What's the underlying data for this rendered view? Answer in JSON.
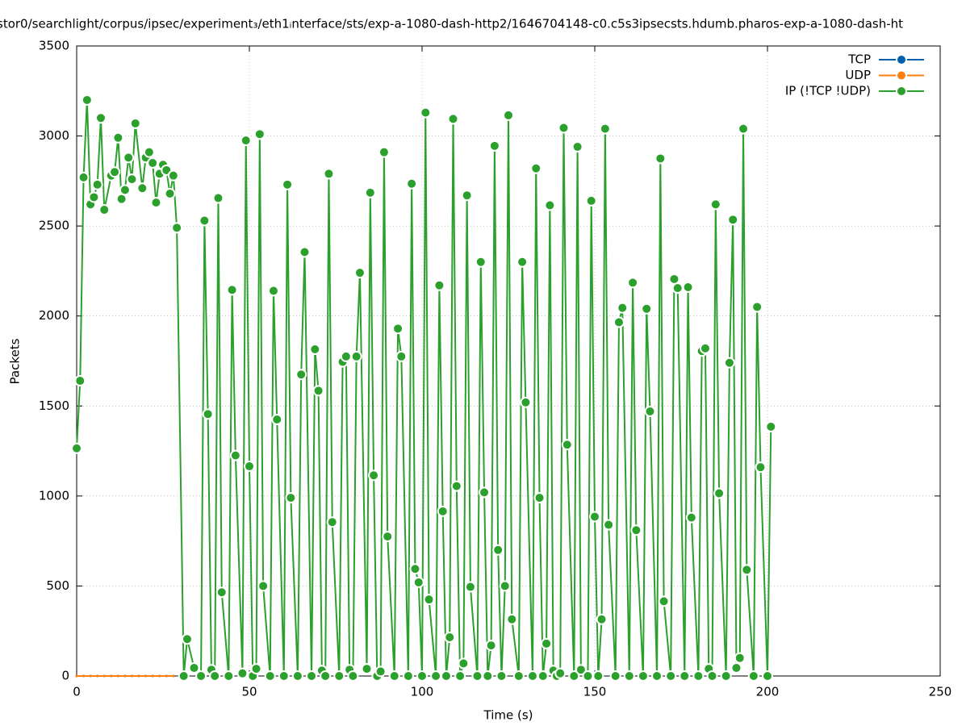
{
  "chart_data": {
    "type": "line",
    "title": "stor0/searchlight/corpus/ipsec/experiment₃/eth1ᵢnterface/sts/exp-a-1080-dash-http2/1646704148-c0.c5s3ipsecsts.hdumb.pharos-exp-a-1080-dash-ht",
    "x_label": "Time (s)",
    "y_label": "Packets",
    "xlim": [
      0,
      250
    ],
    "xticks": [
      0,
      50,
      100,
      150,
      200,
      250
    ],
    "ylim": [
      0,
      3500
    ],
    "yticks": [
      0,
      500,
      1000,
      1500,
      2000,
      2500,
      3000,
      3500
    ],
    "grid": true,
    "legend": "top right",
    "series": [
      {
        "name": "TCP",
        "color": "#0060ad",
        "x": [
          0,
          2,
          4,
          6,
          8,
          10,
          12,
          14,
          16,
          18,
          20,
          22,
          24,
          26,
          28
        ],
        "values": [
          0,
          0,
          0,
          0,
          0,
          0,
          0,
          0,
          0,
          0,
          0,
          0,
          0,
          0,
          0
        ]
      },
      {
        "name": "UDP",
        "color": "#ff7f0e",
        "x": [
          0,
          2,
          4,
          6,
          8,
          10,
          12,
          14,
          16,
          18,
          20,
          22,
          24,
          26,
          28
        ],
        "values": [
          0,
          0,
          0,
          0,
          0,
          0,
          0,
          0,
          0,
          0,
          0,
          0,
          0,
          0,
          0
        ]
      },
      {
        "name": "IP (!TCP  !UDP)",
        "color": "#2ca02c",
        "x": [
          0,
          1,
          2,
          3,
          4,
          5,
          6,
          7,
          8,
          10,
          11,
          12,
          13,
          14,
          15,
          16,
          17,
          19,
          20,
          21,
          22,
          23,
          24,
          25,
          26,
          27,
          28,
          29,
          31,
          32,
          34,
          36,
          37,
          38,
          39,
          40,
          41,
          42,
          44,
          45,
          46,
          48,
          49,
          50,
          51,
          52,
          53,
          54,
          56,
          57,
          58,
          60,
          61,
          62,
          64,
          65,
          66,
          68,
          69,
          70,
          71,
          72,
          73,
          74,
          76,
          77,
          78,
          79,
          80,
          81,
          82,
          84,
          85,
          86,
          87,
          88,
          89,
          90,
          92,
          93,
          94,
          96,
          97,
          98,
          99,
          100,
          101,
          102,
          104,
          105,
          106,
          107,
          108,
          109,
          110,
          111,
          112,
          113,
          114,
          116,
          117,
          118,
          119,
          120,
          121,
          122,
          123,
          124,
          125,
          126,
          128,
          129,
          130,
          132,
          133,
          134,
          135,
          136,
          137,
          138,
          139,
          140,
          141,
          142,
          144,
          145,
          146,
          148,
          149,
          150,
          151,
          152,
          153,
          154,
          156,
          157,
          158,
          160,
          161,
          162,
          164,
          165,
          166,
          168,
          169,
          170,
          172,
          173,
          174,
          176,
          177,
          178,
          180,
          181,
          182,
          183,
          184,
          185,
          186,
          188,
          189,
          190,
          191,
          192,
          193,
          194,
          196,
          197,
          198,
          200,
          201
        ],
        "values": [
          1265,
          1640,
          2770,
          3200,
          2620,
          2660,
          2730,
          3100,
          2590,
          2780,
          2800,
          2990,
          2650,
          2700,
          2880,
          2760,
          3070,
          2710,
          2880,
          2910,
          2850,
          2630,
          2790,
          2840,
          2810,
          2680,
          2780,
          2490,
          0,
          205,
          45,
          0,
          2530,
          1455,
          35,
          0,
          2655,
          465,
          0,
          2145,
          1225,
          15,
          2975,
          1165,
          0,
          40,
          3010,
          500,
          0,
          2140,
          1425,
          0,
          2730,
          990,
          0,
          1675,
          2355,
          0,
          1815,
          1585,
          30,
          0,
          2790,
          855,
          0,
          1745,
          1775,
          35,
          0,
          1775,
          2240,
          40,
          2685,
          1115,
          0,
          25,
          2910,
          775,
          0,
          1930,
          1775,
          0,
          2735,
          595,
          520,
          0,
          3130,
          425,
          0,
          2170,
          915,
          0,
          215,
          3095,
          1055,
          0,
          70,
          2670,
          495,
          0,
          2300,
          1020,
          0,
          170,
          2945,
          700,
          0,
          500,
          3115,
          315,
          0,
          2300,
          1520,
          0,
          2820,
          990,
          0,
          180,
          2615,
          30,
          0,
          15,
          3045,
          1285,
          0,
          2940,
          35,
          0,
          2640,
          885,
          0,
          315,
          3040,
          840,
          0,
          1965,
          2045,
          0,
          2185,
          810,
          0,
          2040,
          1470,
          0,
          2875,
          415,
          0,
          2205,
          2155,
          0,
          2160,
          880,
          0,
          1805,
          1820,
          40,
          0,
          2620,
          1015,
          0,
          1740,
          2535,
          45,
          100,
          3040,
          590,
          0,
          2050,
          1160,
          0,
          1385
        ]
      }
    ]
  }
}
